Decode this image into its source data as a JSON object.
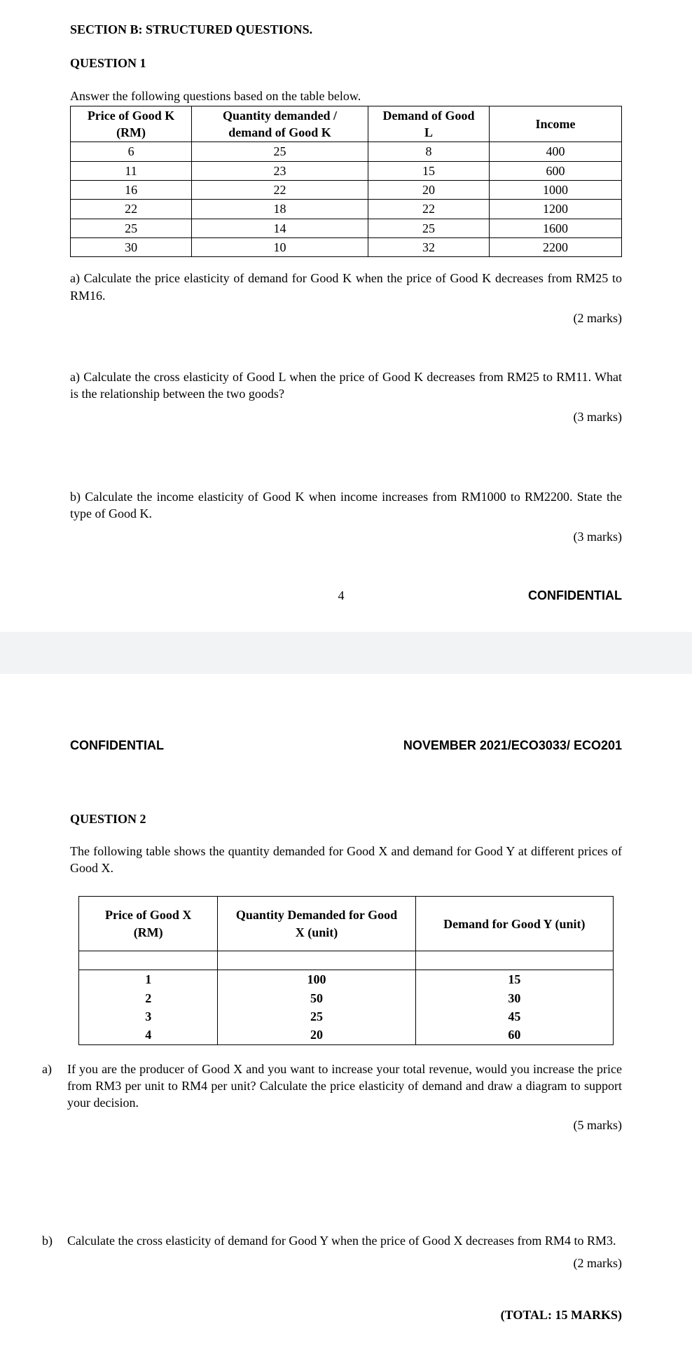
{
  "page1": {
    "section_title": "SECTION B: STRUCTURED QUESTIONS.",
    "question_title": "QUESTION 1",
    "lead_in": "Answer the following questions based on the table below.",
    "table": {
      "columns": [
        {
          "line1": "Price of Good K",
          "line2": "(RM)"
        },
        {
          "line1": "Quantity demanded /",
          "line2": "demand of Good  K"
        },
        {
          "line1": "Demand of Good",
          "line2": "L"
        },
        {
          "line1": "Income",
          "line2": ""
        }
      ],
      "col_widths": [
        "22%",
        "32%",
        "22%",
        "24%"
      ],
      "rows": [
        [
          "6",
          "25",
          "8",
          "400"
        ],
        [
          "11",
          "23",
          "15",
          "600"
        ],
        [
          "16",
          "22",
          "20",
          "1000"
        ],
        [
          "22",
          "18",
          "22",
          "1200"
        ],
        [
          "25",
          "14",
          "25",
          "1600"
        ],
        [
          "30",
          "10",
          "32",
          "2200"
        ]
      ]
    },
    "qa": {
      "text": "a) Calculate the price elasticity of demand for Good K when the price of Good K decreases from RM25 to RM16.",
      "marks": "(2 marks)"
    },
    "qa2": {
      "text": "a) Calculate the cross elasticity of Good L when the price of Good K decreases from RM25 to RM11. What is the relationship between the two goods?",
      "marks": "(3 marks)"
    },
    "qb": {
      "text": "b) Calculate the income elasticity of Good K when income increases from RM1000 to RM2200. State the type of Good K.",
      "marks": "(3 marks)"
    },
    "footer": {
      "page_num": "4",
      "confidential": "CONFIDENTIAL"
    }
  },
  "page2": {
    "header": {
      "left": "CONFIDENTIAL",
      "right": "NOVEMBER 2021/ECO3033/ ECO201"
    },
    "question_title": "QUESTION 2",
    "lead_in": "The following table shows the quantity demanded for Good X and demand for Good Y at different prices of Good X.",
    "table": {
      "columns": [
        {
          "line1": "Price of Good X",
          "line2": "(RM)"
        },
        {
          "line1": "Quantity Demanded for Good",
          "line2": "X (unit)"
        },
        {
          "line1": "Demand for Good Y (unit)",
          "line2": ""
        }
      ],
      "col_widths": [
        "26%",
        "37%",
        "37%"
      ],
      "rows": [
        [
          "1",
          "100",
          "15"
        ],
        [
          "2",
          "50",
          "30"
        ],
        [
          "3",
          "25",
          "45"
        ],
        [
          "4",
          "20",
          "60"
        ]
      ]
    },
    "qa": {
      "label": "a)",
      "text": "If you are the producer of Good X and you want to increase your total revenue, would you increase the price from RM3 per unit to RM4 per unit? Calculate the price elasticity of demand and draw a diagram to support your decision.",
      "marks": "(5 marks)"
    },
    "qb": {
      "label": "b)",
      "text": "Calculate the cross elasticity of demand for Good Y when the price of Good X decreases from RM4 to RM3.",
      "marks": "(2 marks)"
    },
    "total": "(TOTAL: 15 MARKS)"
  }
}
